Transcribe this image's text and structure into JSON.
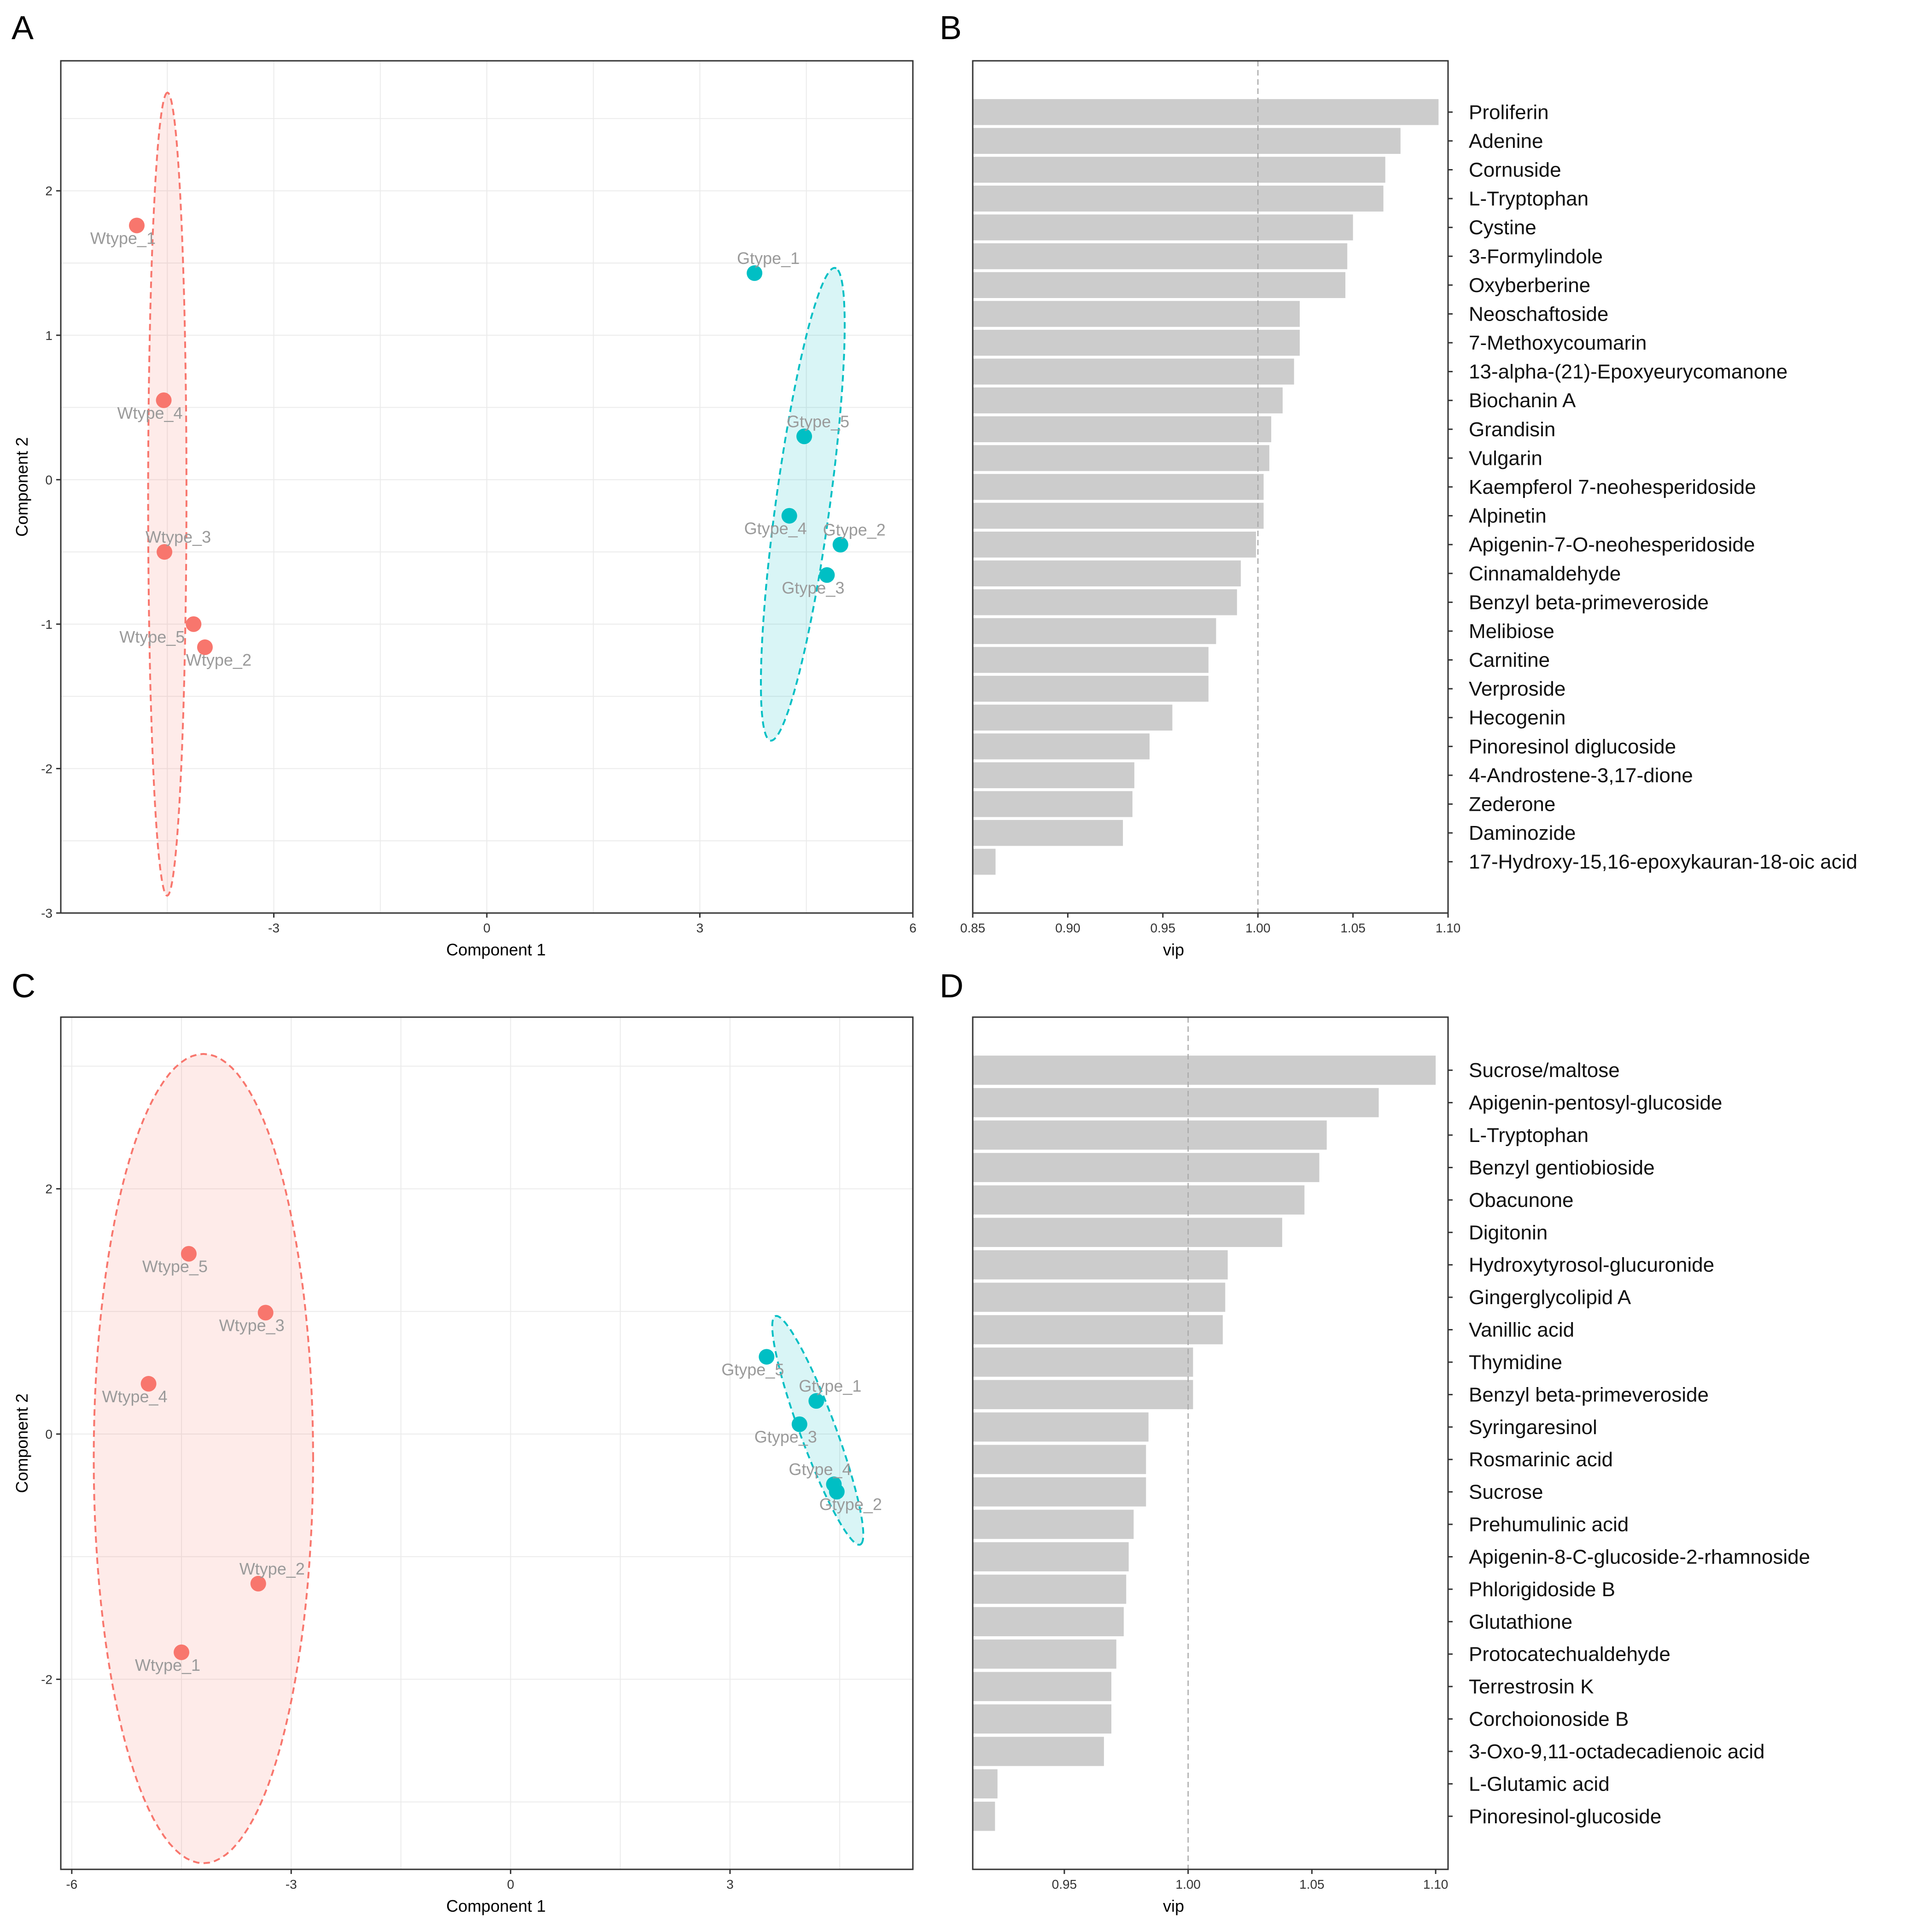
{
  "chart_data": [
    {
      "panel": "A",
      "type": "scatter",
      "xlabel": "Component 1",
      "ylabel": "Component 2",
      "xlim": [
        -6.0,
        6.0
      ],
      "ylim": [
        -3.0,
        2.9
      ],
      "xticks": [
        -3,
        0,
        3,
        6
      ],
      "yticks": [
        -3,
        -2,
        -1,
        0,
        1,
        2
      ],
      "colors": {
        "Wtype": "#f8766d",
        "Gtype": "#00bfc4"
      },
      "points": [
        {
          "label": "Wtype_1",
          "group": "Wtype",
          "x": -4.93,
          "y": 1.76
        },
        {
          "label": "Wtype_4",
          "group": "Wtype",
          "x": -4.55,
          "y": 0.55
        },
        {
          "label": "Wtype_3",
          "group": "Wtype",
          "x": -4.54,
          "y": -0.5
        },
        {
          "label": "Wtype_5",
          "group": "Wtype",
          "x": -4.13,
          "y": -1.0
        },
        {
          "label": "Wtype_2",
          "group": "Wtype",
          "x": -3.97,
          "y": -1.16
        },
        {
          "label": "Gtype_1",
          "group": "Gtype",
          "x": 3.77,
          "y": 1.43
        },
        {
          "label": "Gtype_5",
          "group": "Gtype",
          "x": 4.47,
          "y": 0.3
        },
        {
          "label": "Gtype_4",
          "group": "Gtype",
          "x": 4.26,
          "y": -0.25
        },
        {
          "label": "Gtype_2",
          "group": "Gtype",
          "x": 4.98,
          "y": -0.45
        },
        {
          "label": "Gtype_3",
          "group": "Gtype",
          "x": 4.79,
          "y": -0.66
        }
      ]
    },
    {
      "panel": "B",
      "type": "bar",
      "orientation": "horizontal",
      "xlabel": "vip",
      "xlim": [
        0.85,
        1.1
      ],
      "xticks": [
        "0.85",
        "0.90",
        "0.95",
        "1.00",
        "1.05",
        "1.10"
      ],
      "reference_line": 1.0,
      "categories": [
        "Proliferin",
        "Adenine",
        "Cornuside",
        "L-Tryptophan",
        "Cystine",
        "3-Formylindole",
        "Oxyberberine",
        "Neoschaftoside",
        "7-Methoxycoumarin",
        "13-alpha-(21)-Epoxyeurycomanone",
        "Biochanin A",
        "Grandisin",
        "Vulgarin",
        "Kaempferol 7-neohesperidoside",
        "Alpinetin",
        "Apigenin-7-O-neohesperidoside",
        "Cinnamaldehyde",
        "Benzyl beta-primeveroside",
        "Melibiose",
        "Carnitine",
        "Verproside",
        "Hecogenin",
        "Pinoresinol diglucoside",
        "4-Androstene-3,17-dione",
        "Zederone",
        "Daminozide",
        "17-Hydroxy-15,16-epoxykauran-18-oic acid"
      ],
      "values": [
        1.095,
        1.075,
        1.067,
        1.066,
        1.05,
        1.047,
        1.046,
        1.022,
        1.022,
        1.019,
        1.013,
        1.007,
        1.006,
        1.003,
        1.003,
        0.999,
        0.991,
        0.989,
        0.978,
        0.974,
        0.974,
        0.955,
        0.943,
        0.935,
        0.934,
        0.929,
        0.862
      ]
    },
    {
      "panel": "C",
      "type": "scatter",
      "xlabel": "Component 1",
      "ylabel": "Component 2",
      "xlim": [
        -6.15,
        5.5
      ],
      "ylim": [
        -3.55,
        3.4
      ],
      "xticks": [
        -6,
        -3,
        0,
        3
      ],
      "yticks": [
        -2,
        0,
        2
      ],
      "colors": {
        "Wtype": "#f8766d",
        "Gtype": "#00bfc4"
      },
      "points": [
        {
          "label": "Wtype_5",
          "group": "Wtype",
          "x": -4.4,
          "y": 1.47
        },
        {
          "label": "Wtype_3",
          "group": "Wtype",
          "x": -3.35,
          "y": 0.99
        },
        {
          "label": "Wtype_4",
          "group": "Wtype",
          "x": -4.95,
          "y": 0.41
        },
        {
          "label": "Wtype_2",
          "group": "Wtype",
          "x": -3.45,
          "y": -1.22
        },
        {
          "label": "Wtype_1",
          "group": "Wtype",
          "x": -4.5,
          "y": -1.78
        },
        {
          "label": "Gtype_5",
          "group": "Gtype",
          "x": 3.5,
          "y": 0.63
        },
        {
          "label": "Gtype_1",
          "group": "Gtype",
          "x": 4.18,
          "y": 0.27
        },
        {
          "label": "Gtype_3",
          "group": "Gtype",
          "x": 3.95,
          "y": 0.08
        },
        {
          "label": "Gtype_4",
          "group": "Gtype",
          "x": 4.42,
          "y": -0.41
        },
        {
          "label": "Gtype_2",
          "group": "Gtype",
          "x": 4.46,
          "y": -0.47
        }
      ]
    },
    {
      "panel": "D",
      "type": "bar",
      "orientation": "horizontal",
      "xlabel": "vip",
      "xlim": [
        0.913,
        1.105
      ],
      "xticks": [
        "0.95",
        "1.00",
        "1.05",
        "1.10"
      ],
      "reference_line": 1.0,
      "categories": [
        "Sucrose/maltose",
        "Apigenin-pentosyl-glucoside",
        "L-Tryptophan",
        "Benzyl gentiobioside",
        "Obacunone",
        "Digitonin",
        "Hydroxytyrosol-glucuronide",
        "Gingerglycolipid A",
        "Vanillic acid",
        "Thymidine",
        "Benzyl beta-primeveroside",
        "Syringaresinol",
        "Rosmarinic acid",
        "Sucrose",
        "Prehumulinic acid",
        "Apigenin-8-C-glucoside-2-rhamnoside",
        "Phlorigidoside B",
        "Glutathione",
        "Protocatechualdehyde",
        "Terrestrosin K",
        "Corchoionoside B",
        "3-Oxo-9,11-octadecadienoic acid",
        "L-Glutamic acid",
        "Pinoresinol-glucoside"
      ],
      "values": [
        1.1,
        1.077,
        1.056,
        1.053,
        1.047,
        1.038,
        1.016,
        1.015,
        1.014,
        1.002,
        1.002,
        0.984,
        0.983,
        0.983,
        0.978,
        0.976,
        0.975,
        0.974,
        0.971,
        0.969,
        0.969,
        0.966,
        0.923,
        0.922
      ]
    }
  ]
}
